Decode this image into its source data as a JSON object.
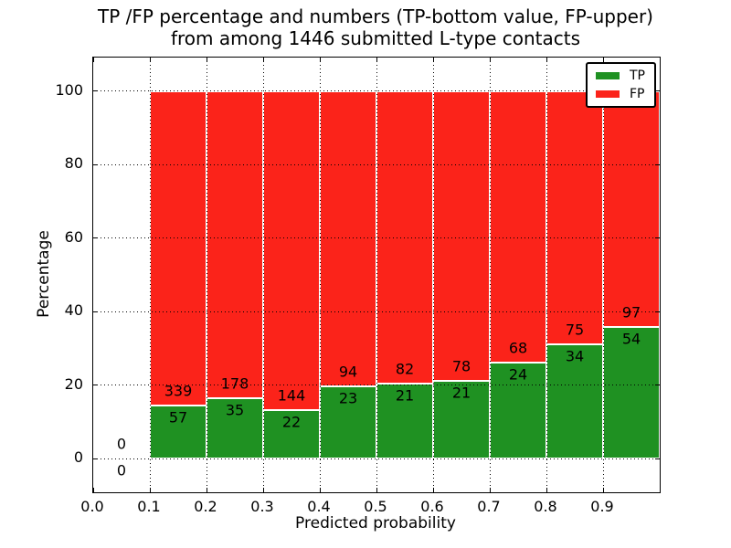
{
  "chart_data": {
    "type": "bar",
    "stacked": true,
    "normalized": "each bar totals 100%",
    "title_line1": "TP /FP percentage and numbers (TP-bottom value, FP-upper)",
    "title_line2": "from among 1446 submitted L-type contacts",
    "xlabel": "Predicted probability",
    "ylabel": "Percentage",
    "xlim": [
      0.0,
      1.0
    ],
    "ylim": [
      -9.2,
      109.2
    ],
    "grid": true,
    "x_tick_values": [
      0.0,
      0.1,
      0.2,
      0.3,
      0.4,
      0.5,
      0.6,
      0.7,
      0.8,
      0.9
    ],
    "x_tick_labels": [
      "0.0",
      "0.1",
      "0.2",
      "0.3",
      "0.4",
      "0.5",
      "0.6",
      "0.7",
      "0.8",
      "0.9"
    ],
    "y_tick_values": [
      0,
      20,
      40,
      60,
      80,
      100
    ],
    "y_tick_labels": [
      "0",
      "20",
      "40",
      "60",
      "80",
      "100"
    ],
    "bin_width": 0.1,
    "total_contacts": 1446,
    "bins": [
      {
        "start": 0.0,
        "tp": 0,
        "fp": 0
      },
      {
        "start": 0.1,
        "tp": 57,
        "fp": 339
      },
      {
        "start": 0.2,
        "tp": 35,
        "fp": 178
      },
      {
        "start": 0.3,
        "tp": 22,
        "fp": 144
      },
      {
        "start": 0.4,
        "tp": 23,
        "fp": 94
      },
      {
        "start": 0.5,
        "tp": 21,
        "fp": 82
      },
      {
        "start": 0.6,
        "tp": 21,
        "fp": 78
      },
      {
        "start": 0.7,
        "tp": 24,
        "fp": 68
      },
      {
        "start": 0.8,
        "tp": 34,
        "fp": 75
      },
      {
        "start": 0.9,
        "tp": 54,
        "fp": 97
      }
    ],
    "series": [
      {
        "name": "TP",
        "color": "#1f9122",
        "position": "bottom"
      },
      {
        "name": "FP",
        "color": "#fb231a",
        "position": "top"
      }
    ],
    "legend": {
      "position": "upper right",
      "entries": [
        {
          "label": "TP",
          "color": "#1f9122"
        },
        {
          "label": "FP",
          "color": "#fb231a"
        }
      ]
    },
    "colors": {
      "tp_green": "#1f9122",
      "fp_red": "#fb231a",
      "background": "#ffffff",
      "axes": "#000000",
      "text": "#000000"
    }
  }
}
